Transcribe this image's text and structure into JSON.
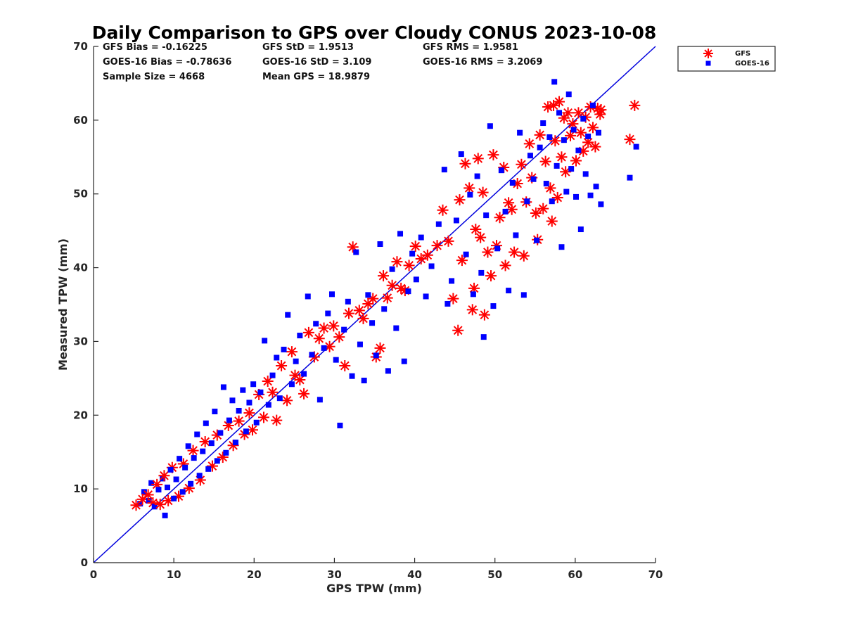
{
  "chart_data": {
    "type": "scatter",
    "title": "Daily Comparison to GPS over Cloudy CONUS 2023-10-08",
    "xlabel": "GPS TPW (mm)",
    "ylabel": "Measured TPW (mm)",
    "xlim": [
      0,
      70
    ],
    "ylim": [
      0,
      70
    ],
    "xticks": [
      0,
      10,
      20,
      30,
      40,
      50,
      60,
      70
    ],
    "yticks": [
      0,
      10,
      20,
      30,
      40,
      50,
      60,
      70
    ],
    "grid": false,
    "legend_position": "outside top-right",
    "stats": [
      [
        "GFS Bias = -0.16225",
        "GFS StD = 1.9513",
        "GFS RMS = 1.9581"
      ],
      [
        "GOES-16 Bias = -0.78636",
        "GOES-16 StD = 3.109",
        "GOES-16 RMS = 3.2069"
      ],
      [
        "Sample Size = 4668",
        "Mean GPS = 18.9879"
      ]
    ],
    "reference_line": {
      "x": [
        0,
        70
      ],
      "y": [
        0,
        70
      ],
      "color": "#0000dd"
    },
    "series": [
      {
        "name": "GFS",
        "marker": "asterisk",
        "color": "#ff0000",
        "points": [
          [
            5.3,
            7.8
          ],
          [
            6.1,
            8.6
          ],
          [
            6.8,
            9.2
          ],
          [
            7.4,
            8.1
          ],
          [
            7.9,
            10.6
          ],
          [
            8.3,
            7.9
          ],
          [
            8.8,
            11.8
          ],
          [
            9.3,
            8.4
          ],
          [
            9.8,
            12.9
          ],
          [
            10.6,
            9.0
          ],
          [
            11.2,
            13.4
          ],
          [
            11.9,
            10.1
          ],
          [
            12.4,
            15.2
          ],
          [
            13.3,
            11.2
          ],
          [
            13.9,
            16.4
          ],
          [
            14.8,
            13.1
          ],
          [
            15.4,
            17.3
          ],
          [
            16.1,
            14.3
          ],
          [
            16.8,
            18.6
          ],
          [
            17.4,
            15.9
          ],
          [
            18.1,
            19.2
          ],
          [
            18.8,
            17.4
          ],
          [
            19.4,
            20.3
          ],
          [
            19.8,
            18.0
          ],
          [
            20.6,
            22.8
          ],
          [
            21.2,
            19.7
          ],
          [
            21.7,
            24.6
          ],
          [
            22.3,
            23.1
          ],
          [
            22.8,
            19.3
          ],
          [
            23.4,
            26.7
          ],
          [
            24.1,
            22.0
          ],
          [
            24.7,
            28.6
          ],
          [
            25.1,
            25.4
          ],
          [
            25.7,
            24.8
          ],
          [
            26.2,
            22.9
          ],
          [
            26.8,
            31.2
          ],
          [
            27.5,
            27.9
          ],
          [
            28.1,
            30.4
          ],
          [
            28.7,
            31.8
          ],
          [
            29.4,
            29.3
          ],
          [
            29.9,
            32.1
          ],
          [
            30.6,
            30.6
          ],
          [
            31.3,
            26.7
          ],
          [
            31.8,
            33.8
          ],
          [
            32.3,
            42.8
          ],
          [
            33.1,
            34.2
          ],
          [
            33.6,
            33.1
          ],
          [
            34.2,
            35.1
          ],
          [
            34.8,
            35.8
          ],
          [
            35.2,
            27.9
          ],
          [
            35.7,
            29.1
          ],
          [
            36.1,
            38.9
          ],
          [
            36.6,
            35.9
          ],
          [
            37.2,
            37.6
          ],
          [
            37.8,
            40.8
          ],
          [
            38.3,
            37.2
          ],
          [
            38.8,
            36.9
          ],
          [
            39.3,
            40.3
          ],
          [
            40.1,
            42.9
          ],
          [
            40.8,
            41.2
          ],
          [
            41.6,
            41.7
          ],
          [
            42.8,
            43.0
          ],
          [
            43.5,
            47.8
          ],
          [
            44.2,
            43.6
          ],
          [
            44.8,
            35.8
          ],
          [
            45.4,
            31.5
          ],
          [
            45.6,
            49.2
          ],
          [
            45.9,
            41.0
          ],
          [
            46.3,
            54.1
          ],
          [
            46.8,
            50.8
          ],
          [
            47.2,
            34.3
          ],
          [
            47.4,
            37.2
          ],
          [
            47.6,
            45.2
          ],
          [
            47.9,
            54.8
          ],
          [
            48.2,
            44.1
          ],
          [
            48.5,
            50.2
          ],
          [
            48.7,
            33.6
          ],
          [
            49.1,
            42.1
          ],
          [
            49.5,
            38.9
          ],
          [
            49.8,
            55.3
          ],
          [
            50.2,
            43.0
          ],
          [
            50.6,
            46.8
          ],
          [
            51.1,
            53.6
          ],
          [
            51.3,
            40.3
          ],
          [
            51.7,
            48.8
          ],
          [
            52.1,
            47.9
          ],
          [
            52.4,
            42.1
          ],
          [
            52.8,
            51.4
          ],
          [
            53.3,
            54.0
          ],
          [
            53.6,
            41.6
          ],
          [
            53.9,
            48.9
          ],
          [
            54.3,
            56.8
          ],
          [
            54.6,
            52.2
          ],
          [
            55.1,
            47.4
          ],
          [
            55.3,
            43.8
          ],
          [
            55.6,
            58.0
          ],
          [
            56.0,
            48.0
          ],
          [
            56.3,
            54.4
          ],
          [
            56.6,
            61.8
          ],
          [
            56.9,
            50.8
          ],
          [
            57.1,
            46.3
          ],
          [
            57.3,
            62.0
          ],
          [
            57.5,
            57.2
          ],
          [
            57.8,
            49.5
          ],
          [
            58.0,
            62.5
          ],
          [
            58.3,
            55.0
          ],
          [
            58.6,
            60.3
          ],
          [
            58.8,
            53.0
          ],
          [
            59.1,
            61.0
          ],
          [
            59.4,
            57.9
          ],
          [
            59.7,
            59.5
          ],
          [
            60.1,
            54.5
          ],
          [
            60.4,
            61.0
          ],
          [
            60.7,
            58.3
          ],
          [
            61.0,
            55.8
          ],
          [
            61.3,
            60.4
          ],
          [
            61.6,
            57.0
          ],
          [
            61.9,
            61.8
          ],
          [
            62.2,
            59.0
          ],
          [
            62.5,
            56.4
          ],
          [
            62.8,
            61.6
          ],
          [
            63.1,
            60.8
          ],
          [
            63.2,
            61.4
          ],
          [
            66.8,
            57.4
          ],
          [
            67.4,
            62.0
          ]
        ]
      },
      {
        "name": "GOES-16",
        "marker": "square",
        "color": "#0000ff",
        "points": [
          [
            5.8,
            8.0
          ],
          [
            6.3,
            9.6
          ],
          [
            6.9,
            8.4
          ],
          [
            7.2,
            10.8
          ],
          [
            7.6,
            7.6
          ],
          [
            8.1,
            9.9
          ],
          [
            8.6,
            11.4
          ],
          [
            8.9,
            6.4
          ],
          [
            9.2,
            10.2
          ],
          [
            9.6,
            12.6
          ],
          [
            10.0,
            8.7
          ],
          [
            10.3,
            11.3
          ],
          [
            10.7,
            14.1
          ],
          [
            11.1,
            9.6
          ],
          [
            11.4,
            12.9
          ],
          [
            11.8,
            15.8
          ],
          [
            12.1,
            10.7
          ],
          [
            12.5,
            14.2
          ],
          [
            12.9,
            17.4
          ],
          [
            13.2,
            11.8
          ],
          [
            13.6,
            15.1
          ],
          [
            14.0,
            18.9
          ],
          [
            14.3,
            12.7
          ],
          [
            14.7,
            16.2
          ],
          [
            15.1,
            20.5
          ],
          [
            15.4,
            13.8
          ],
          [
            15.8,
            17.6
          ],
          [
            16.2,
            23.8
          ],
          [
            16.5,
            14.9
          ],
          [
            16.9,
            19.3
          ],
          [
            17.3,
            22.0
          ],
          [
            17.7,
            16.3
          ],
          [
            18.1,
            20.6
          ],
          [
            18.6,
            23.4
          ],
          [
            19.0,
            17.8
          ],
          [
            19.4,
            21.7
          ],
          [
            19.9,
            24.2
          ],
          [
            20.3,
            19.0
          ],
          [
            20.8,
            23.1
          ],
          [
            21.3,
            30.1
          ],
          [
            21.8,
            21.4
          ],
          [
            22.3,
            25.4
          ],
          [
            22.8,
            27.8
          ],
          [
            23.2,
            22.3
          ],
          [
            23.7,
            28.9
          ],
          [
            24.2,
            33.6
          ],
          [
            24.7,
            24.2
          ],
          [
            25.2,
            27.3
          ],
          [
            25.7,
            30.8
          ],
          [
            26.2,
            25.6
          ],
          [
            26.7,
            36.1
          ],
          [
            27.2,
            28.2
          ],
          [
            27.7,
            32.4
          ],
          [
            28.2,
            22.1
          ],
          [
            28.7,
            29.1
          ],
          [
            29.2,
            33.8
          ],
          [
            29.7,
            36.4
          ],
          [
            30.2,
            27.5
          ],
          [
            30.7,
            18.6
          ],
          [
            31.2,
            31.6
          ],
          [
            31.7,
            35.4
          ],
          [
            32.2,
            25.3
          ],
          [
            32.7,
            42.1
          ],
          [
            33.2,
            29.6
          ],
          [
            33.7,
            24.7
          ],
          [
            34.2,
            36.3
          ],
          [
            34.7,
            32.5
          ],
          [
            35.2,
            28.1
          ],
          [
            35.7,
            43.2
          ],
          [
            36.2,
            34.4
          ],
          [
            36.7,
            26.0
          ],
          [
            37.2,
            39.8
          ],
          [
            37.7,
            31.8
          ],
          [
            38.2,
            44.6
          ],
          [
            38.7,
            27.3
          ],
          [
            39.2,
            36.8
          ],
          [
            39.7,
            41.9
          ],
          [
            40.2,
            38.4
          ],
          [
            40.8,
            44.1
          ],
          [
            41.4,
            36.1
          ],
          [
            42.1,
            40.2
          ],
          [
            43.0,
            45.9
          ],
          [
            43.7,
            53.3
          ],
          [
            44.1,
            35.1
          ],
          [
            44.6,
            38.2
          ],
          [
            45.2,
            46.4
          ],
          [
            45.8,
            55.4
          ],
          [
            46.4,
            41.8
          ],
          [
            46.9,
            49.9
          ],
          [
            47.3,
            36.4
          ],
          [
            47.8,
            52.4
          ],
          [
            48.3,
            39.3
          ],
          [
            48.6,
            30.6
          ],
          [
            48.9,
            47.1
          ],
          [
            49.4,
            59.2
          ],
          [
            49.8,
            34.8
          ],
          [
            50.3,
            42.6
          ],
          [
            50.8,
            53.2
          ],
          [
            51.3,
            47.6
          ],
          [
            51.7,
            36.9
          ],
          [
            52.2,
            51.5
          ],
          [
            52.6,
            44.4
          ],
          [
            53.1,
            58.3
          ],
          [
            53.6,
            36.3
          ],
          [
            54.0,
            49.0
          ],
          [
            54.4,
            55.2
          ],
          [
            54.8,
            52.0
          ],
          [
            55.2,
            43.7
          ],
          [
            55.6,
            56.3
          ],
          [
            56.0,
            59.6
          ],
          [
            56.4,
            51.4
          ],
          [
            56.8,
            57.7
          ],
          [
            57.1,
            49.0
          ],
          [
            57.4,
            65.2
          ],
          [
            57.7,
            53.8
          ],
          [
            58.0,
            61.0
          ],
          [
            58.3,
            42.8
          ],
          [
            58.6,
            57.3
          ],
          [
            58.9,
            50.3
          ],
          [
            59.2,
            63.5
          ],
          [
            59.5,
            53.4
          ],
          [
            59.8,
            58.7
          ],
          [
            60.1,
            49.6
          ],
          [
            60.4,
            55.9
          ],
          [
            60.7,
            45.2
          ],
          [
            61.0,
            60.2
          ],
          [
            61.3,
            52.7
          ],
          [
            61.6,
            57.8
          ],
          [
            61.9,
            49.8
          ],
          [
            62.2,
            62.0
          ],
          [
            62.6,
            51.0
          ],
          [
            62.9,
            58.3
          ],
          [
            63.2,
            48.6
          ],
          [
            66.8,
            52.2
          ],
          [
            67.6,
            56.4
          ]
        ]
      }
    ]
  }
}
